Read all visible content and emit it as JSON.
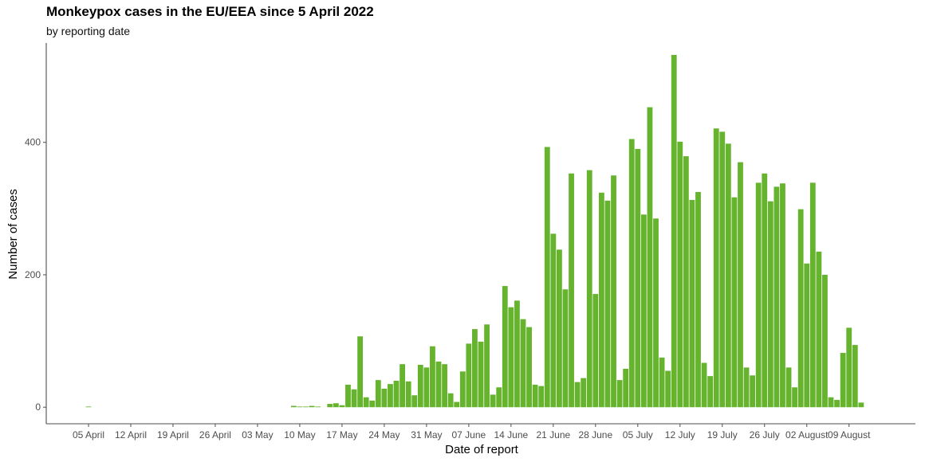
{
  "title": "Monkeypox cases in the EU/EEA since 5 April 2022",
  "subtitle": "by reporting date",
  "chart_data": {
    "type": "bar",
    "title": "Monkeypox cases in the EU/EEA since 5 April 2022",
    "subtitle": "by reporting date",
    "xlabel": "Date of report",
    "ylabel": "Number of cases",
    "bar_color": "#66b32e",
    "grid": false,
    "legend": "none",
    "xlim": [
      "2022-03-29",
      "2022-08-20"
    ],
    "ylim": [
      -25,
      550
    ],
    "yticks": [
      0,
      200,
      400
    ],
    "xticks": [
      {
        "date": "2022-04-05",
        "label": "05 April"
      },
      {
        "date": "2022-04-12",
        "label": "12 April"
      },
      {
        "date": "2022-04-19",
        "label": "19 April"
      },
      {
        "date": "2022-04-26",
        "label": "26 April"
      },
      {
        "date": "2022-05-03",
        "label": "03 May"
      },
      {
        "date": "2022-05-10",
        "label": "10 May"
      },
      {
        "date": "2022-05-17",
        "label": "17 May"
      },
      {
        "date": "2022-05-24",
        "label": "24 May"
      },
      {
        "date": "2022-05-31",
        "label": "31 May"
      },
      {
        "date": "2022-06-07",
        "label": "07 June"
      },
      {
        "date": "2022-06-14",
        "label": "14 June"
      },
      {
        "date": "2022-06-21",
        "label": "21 June"
      },
      {
        "date": "2022-06-28",
        "label": "28 June"
      },
      {
        "date": "2022-07-05",
        "label": "05 July"
      },
      {
        "date": "2022-07-12",
        "label": "12 July"
      },
      {
        "date": "2022-07-19",
        "label": "19 July"
      },
      {
        "date": "2022-07-26",
        "label": "26 July"
      },
      {
        "date": "2022-08-02",
        "label": "02 August"
      },
      {
        "date": "2022-08-09",
        "label": "09 August"
      }
    ],
    "x": [
      "2022-04-05",
      "2022-05-09",
      "2022-05-10",
      "2022-05-11",
      "2022-05-12",
      "2022-05-13",
      "2022-05-15",
      "2022-05-16",
      "2022-05-17",
      "2022-05-18",
      "2022-05-19",
      "2022-05-20",
      "2022-05-21",
      "2022-05-22",
      "2022-05-23",
      "2022-05-24",
      "2022-05-25",
      "2022-05-26",
      "2022-05-27",
      "2022-05-28",
      "2022-05-29",
      "2022-05-30",
      "2022-05-31",
      "2022-06-01",
      "2022-06-02",
      "2022-06-03",
      "2022-06-04",
      "2022-06-05",
      "2022-06-06",
      "2022-06-07",
      "2022-06-08",
      "2022-06-09",
      "2022-06-10",
      "2022-06-11",
      "2022-06-12",
      "2022-06-13",
      "2022-06-14",
      "2022-06-15",
      "2022-06-16",
      "2022-06-17",
      "2022-06-18",
      "2022-06-19",
      "2022-06-20",
      "2022-06-21",
      "2022-06-22",
      "2022-06-23",
      "2022-06-24",
      "2022-06-25",
      "2022-06-26",
      "2022-06-27",
      "2022-06-28",
      "2022-06-29",
      "2022-06-30",
      "2022-07-01",
      "2022-07-02",
      "2022-07-03",
      "2022-07-04",
      "2022-07-05",
      "2022-07-06",
      "2022-07-07",
      "2022-07-08",
      "2022-07-09",
      "2022-07-10",
      "2022-07-11",
      "2022-07-12",
      "2022-07-13",
      "2022-07-14",
      "2022-07-15",
      "2022-07-16",
      "2022-07-17",
      "2022-07-18",
      "2022-07-19",
      "2022-07-20",
      "2022-07-21",
      "2022-07-22",
      "2022-07-23",
      "2022-07-24",
      "2022-07-25",
      "2022-07-26",
      "2022-07-27",
      "2022-07-28",
      "2022-07-29",
      "2022-07-30",
      "2022-07-31",
      "2022-08-01",
      "2022-08-02",
      "2022-08-03",
      "2022-08-04",
      "2022-08-05",
      "2022-08-06",
      "2022-08-07",
      "2022-08-08",
      "2022-08-09",
      "2022-08-10",
      "2022-08-11"
    ],
    "values": [
      1,
      2,
      1,
      1,
      2,
      1,
      5,
      6,
      3,
      34,
      27,
      107,
      15,
      10,
      41,
      28,
      35,
      40,
      65,
      39,
      18,
      64,
      60,
      92,
      69,
      65,
      21,
      8,
      54,
      96,
      118,
      99,
      125,
      19,
      30,
      183,
      151,
      161,
      133,
      121,
      34,
      32,
      393,
      262,
      238,
      178,
      353,
      38,
      44,
      358,
      171,
      324,
      312,
      350,
      41,
      58,
      405,
      390,
      291,
      453,
      285,
      75,
      55,
      532,
      401,
      379,
      313,
      325,
      67,
      47,
      421,
      416,
      398,
      317,
      370,
      60,
      48,
      339,
      353,
      311,
      333,
      338,
      60,
      30,
      299,
      217,
      339,
      235,
      200,
      15,
      11,
      82,
      120,
      94,
      7
    ]
  }
}
